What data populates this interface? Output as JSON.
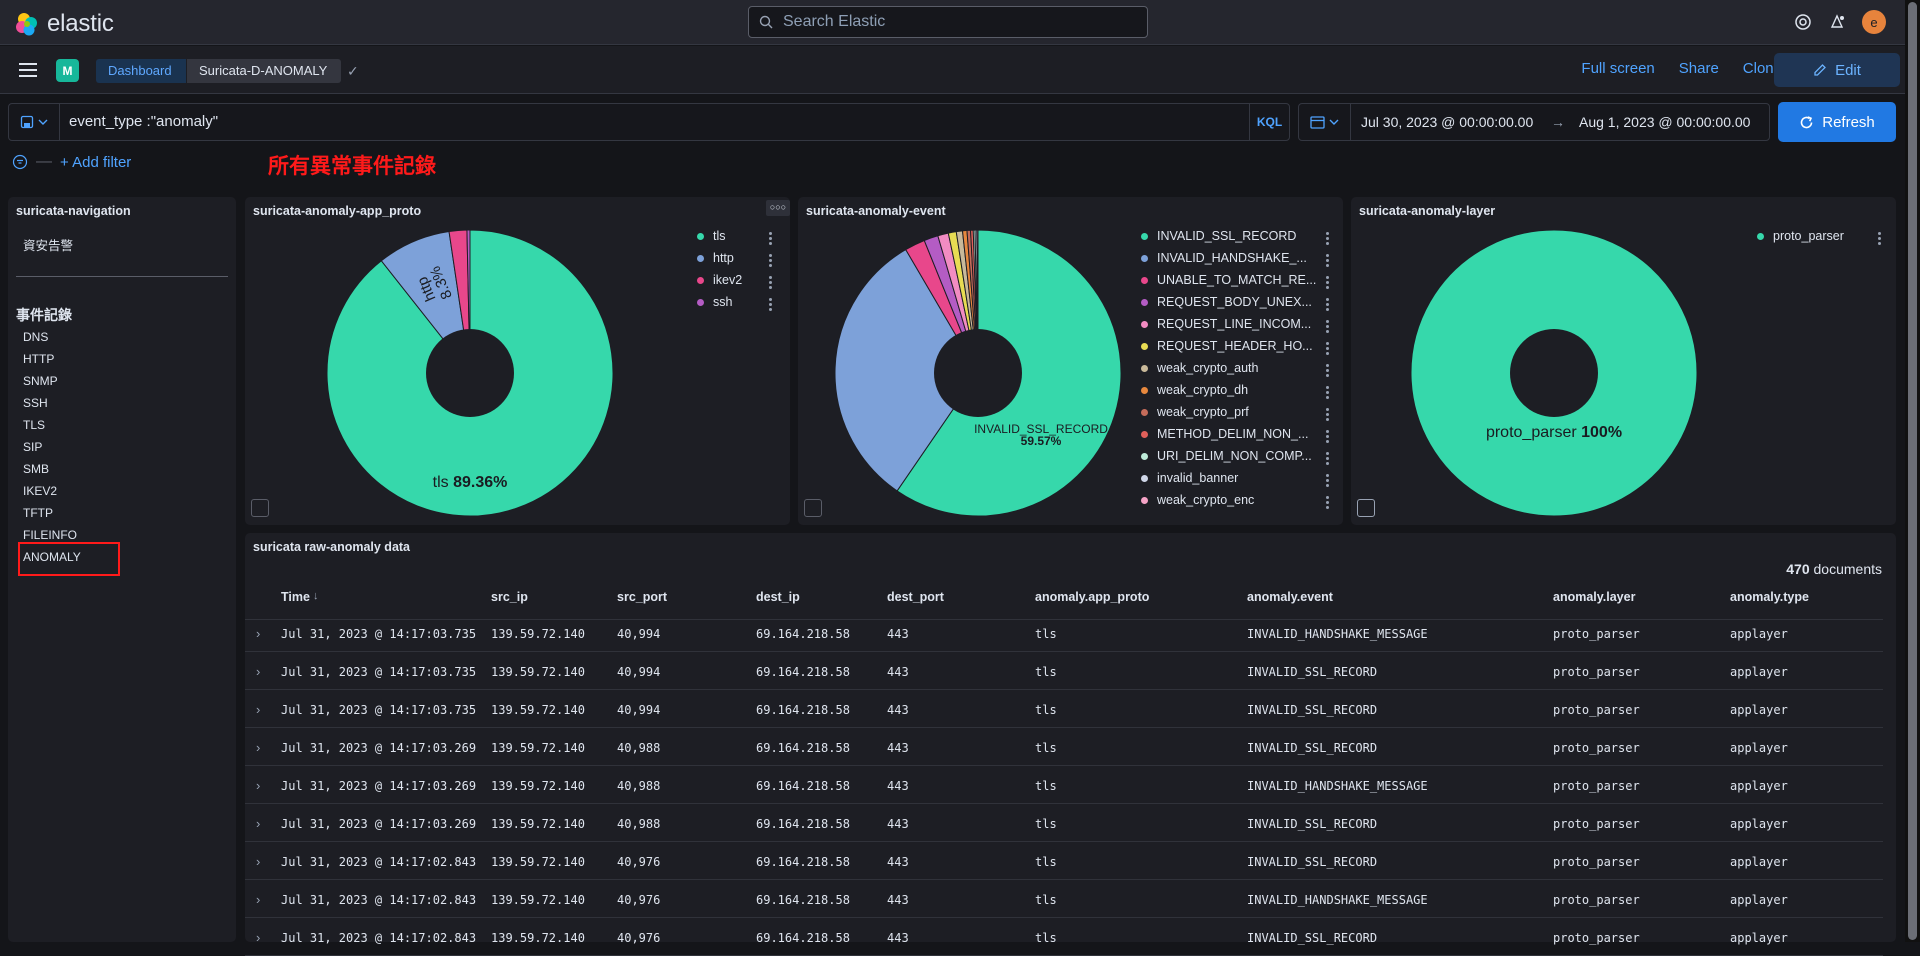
{
  "app": {
    "brand": "elastic",
    "search_placeholder": "Search Elastic",
    "avatar_initial": "e"
  },
  "nav": {
    "space_badge": "M",
    "breadcrumbs": [
      "Dashboard",
      "Suricata-D-ANOMALY"
    ],
    "actions": [
      "Full screen",
      "Share",
      "Clone"
    ],
    "edit_label": "Edit"
  },
  "query": {
    "text": "event_type :\"anomaly\"",
    "language": "KQL",
    "date_start": "Jul 30, 2023 @ 00:00:00.00",
    "date_end": "Aug 1, 2023 @ 00:00:00.00",
    "refresh_label": "Refresh",
    "add_filter": "+ Add filter"
  },
  "annotation": "所有異常事件記錄",
  "navigation_panel": {
    "title": "suricata-navigation",
    "alert_link": "資安告警",
    "section_title": "事件記錄",
    "items": [
      "DNS",
      "HTTP",
      "SNMP",
      "SSH",
      "TLS",
      "SIP",
      "SMB",
      "IKEV2",
      "TFTP",
      "FILEINFO",
      "ANOMALY"
    ]
  },
  "chart_data": [
    {
      "type": "pie",
      "title": "suricata-anomaly-app_proto",
      "labels": [
        "tls",
        "http",
        "ikev2",
        "ssh"
      ],
      "values": [
        89.36,
        8.3,
        2.0,
        0.34
      ],
      "colors": [
        "#36d8ab",
        "#7da1d9",
        "#e8478b",
        "#b45cc4"
      ],
      "slice_labels": [
        {
          "name": "tls",
          "value": "89.36%"
        },
        {
          "name": "http",
          "value": "8.3%"
        }
      ]
    },
    {
      "type": "pie",
      "title": "suricata-anomaly-event",
      "labels": [
        "INVALID_SSL_RECORD",
        "INVALID_HANDSHAKE_...",
        "UNABLE_TO_MATCH_RE...",
        "REQUEST_BODY_UNEX...",
        "REQUEST_LINE_INCOM...",
        "REQUEST_HEADER_HO...",
        "weak_crypto_auth",
        "weak_crypto_dh",
        "weak_crypto_prf",
        "METHOD_DELIM_NON_...",
        "URI_DELIM_NON_COMP...",
        "invalid_banner",
        "weak_crypto_enc"
      ],
      "values": [
        59.57,
        32.0,
        2.3,
        1.6,
        1.2,
        0.9,
        0.7,
        0.5,
        0.4,
        0.3,
        0.2,
        0.2,
        0.13
      ],
      "colors": [
        "#36d8ab",
        "#7da1d9",
        "#e8478b",
        "#b45cc4",
        "#f28cc2",
        "#e8dc53",
        "#c9b99a",
        "#e7883e",
        "#c56c5a",
        "#e0605a",
        "#bdebd8",
        "#cfd6e8",
        "#f5a3c6"
      ],
      "slice_labels": [
        {
          "name": "INVALID_SSL_RECORD",
          "value": "59.57%"
        }
      ]
    },
    {
      "type": "pie",
      "title": "suricata-anomaly-layer",
      "labels": [
        "proto_parser"
      ],
      "values": [
        100
      ],
      "colors": [
        "#36d8ab"
      ],
      "slice_labels": [
        {
          "name": "proto_parser",
          "value": "100%"
        }
      ]
    }
  ],
  "table": {
    "title": "suricata raw-anomaly data",
    "doc_count": "470",
    "doc_suffix": "documents",
    "columns": [
      "Time",
      "src_ip",
      "src_port",
      "dest_ip",
      "dest_port",
      "anomaly.app_proto",
      "anomaly.event",
      "anomaly.layer",
      "anomaly.type"
    ],
    "rows": [
      [
        "Jul 31, 2023 @ 14:17:03.735",
        "139.59.72.140",
        "40,994",
        "69.164.218.58",
        "443",
        "tls",
        "INVALID_HANDSHAKE_MESSAGE",
        "proto_parser",
        "applayer"
      ],
      [
        "Jul 31, 2023 @ 14:17:03.735",
        "139.59.72.140",
        "40,994",
        "69.164.218.58",
        "443",
        "tls",
        "INVALID_SSL_RECORD",
        "proto_parser",
        "applayer"
      ],
      [
        "Jul 31, 2023 @ 14:17:03.735",
        "139.59.72.140",
        "40,994",
        "69.164.218.58",
        "443",
        "tls",
        "INVALID_SSL_RECORD",
        "proto_parser",
        "applayer"
      ],
      [
        "Jul 31, 2023 @ 14:17:03.269",
        "139.59.72.140",
        "40,988",
        "69.164.218.58",
        "443",
        "tls",
        "INVALID_SSL_RECORD",
        "proto_parser",
        "applayer"
      ],
      [
        "Jul 31, 2023 @ 14:17:03.269",
        "139.59.72.140",
        "40,988",
        "69.164.218.58",
        "443",
        "tls",
        "INVALID_HANDSHAKE_MESSAGE",
        "proto_parser",
        "applayer"
      ],
      [
        "Jul 31, 2023 @ 14:17:03.269",
        "139.59.72.140",
        "40,988",
        "69.164.218.58",
        "443",
        "tls",
        "INVALID_SSL_RECORD",
        "proto_parser",
        "applayer"
      ],
      [
        "Jul 31, 2023 @ 14:17:02.843",
        "139.59.72.140",
        "40,976",
        "69.164.218.58",
        "443",
        "tls",
        "INVALID_SSL_RECORD",
        "proto_parser",
        "applayer"
      ],
      [
        "Jul 31, 2023 @ 14:17:02.843",
        "139.59.72.140",
        "40,976",
        "69.164.218.58",
        "443",
        "tls",
        "INVALID_HANDSHAKE_MESSAGE",
        "proto_parser",
        "applayer"
      ],
      [
        "Jul 31, 2023 @ 14:17:02.843",
        "139.59.72.140",
        "40,976",
        "69.164.218.58",
        "443",
        "tls",
        "INVALID_SSL_RECORD",
        "proto_parser",
        "applayer"
      ]
    ]
  },
  "colors": {
    "accent": "#2179e3",
    "link": "#4fa3ff",
    "highlight_box": "#ff1a1a"
  }
}
